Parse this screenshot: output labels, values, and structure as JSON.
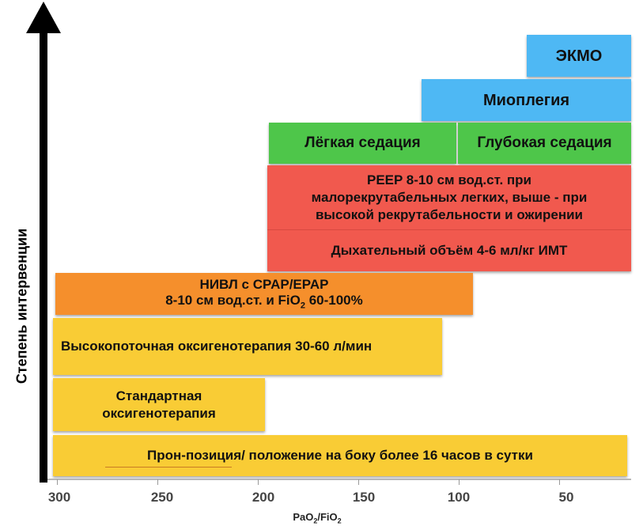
{
  "y_axis": {
    "label": "Степень интервенции"
  },
  "x_axis": {
    "ticks": [
      "300",
      "250",
      "200",
      "150",
      "100",
      "50"
    ],
    "label_main": "PaO",
    "label_sub1": "2",
    "label_slash": "/FiO",
    "label_sub2": "2",
    "range": [
      300,
      20
    ],
    "direction": "decreasing-left-to-right"
  },
  "interventions": {
    "ecmo": {
      "label": "ЭКМО",
      "from": 70,
      "to": 20,
      "color": "#4eb8f4"
    },
    "myoplegia": {
      "label": "Миоплегия",
      "from": 120,
      "to": 20,
      "color": "#4eb8f4"
    },
    "light_sedation": {
      "label": "Лёгкая седация",
      "from": 200,
      "to": 105,
      "color": "#4ec64a"
    },
    "deep_sedation": {
      "label": "Глубокая седация",
      "from": 105,
      "to": 20,
      "color": "#4ec64a"
    },
    "peep": {
      "line1": "PEEP 8-10 см вод.ст. при",
      "line2": "малорекрутабельных легких, выше - при",
      "line3": "высокой рекрутабельности и ожирении",
      "from": 200,
      "to": 20,
      "color": "#f1594e"
    },
    "tidal_volume": {
      "label": "Дыхательный объём 4-6 мл/кг ИМТ",
      "from": 200,
      "to": 20,
      "color": "#f1594e"
    },
    "niv": {
      "line1": "НИВЛ с CPAP/EPAP",
      "line2_pre": "8-10 см вод.ст. и FiO",
      "line2_sub": "2",
      "line2_post": " 60-100%",
      "from": 300,
      "to": 100,
      "color": "#f58f2c"
    },
    "high_flow": {
      "label": "Высокопоточная оксигенотерапия 30-60 л/мин",
      "from": 300,
      "to": 112,
      "color": "#f9cc35"
    },
    "standard_o2": {
      "line1": "Стандартная",
      "line2": "оксигенотерапия",
      "from": 300,
      "to": 200,
      "color": "#f9cc35"
    },
    "prone": {
      "label": "Прон-позиция/ положение на боку более 16 часов в сутки",
      "from": 300,
      "to": 20,
      "color": "#f9cc35"
    }
  }
}
